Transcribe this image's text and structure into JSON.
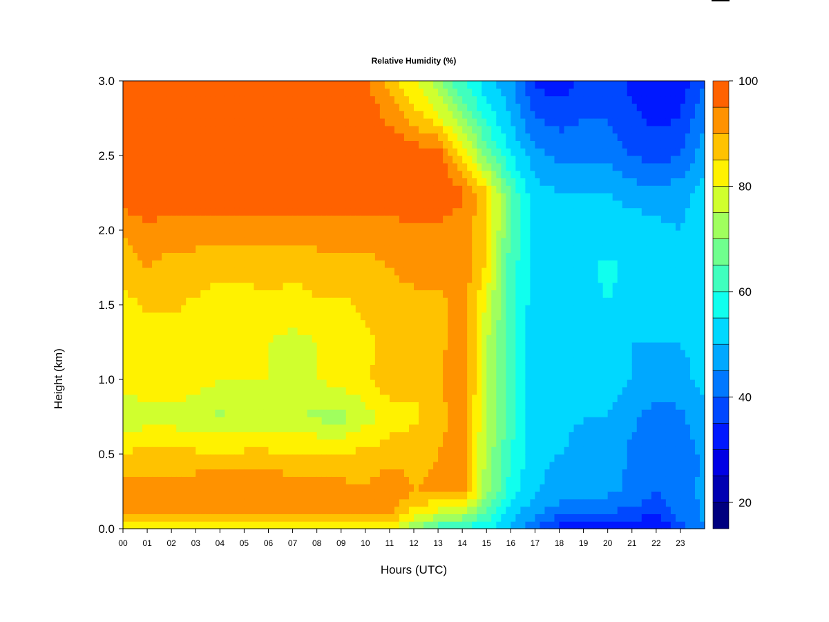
{
  "chart_data": {
    "type": "heatmap",
    "title": "Relative Humidity (%)",
    "xlabel": "Hours (UTC)",
    "ylabel": "Height (km)",
    "x_ticks": [
      "00",
      "01",
      "02",
      "03",
      "04",
      "05",
      "06",
      "07",
      "08",
      "09",
      "10",
      "11",
      "12",
      "13",
      "14",
      "15",
      "16",
      "17",
      "18",
      "19",
      "20",
      "21",
      "22",
      "23"
    ],
    "y_ticks": [
      "0.0",
      "0.5",
      "1.0",
      "1.5",
      "2.0",
      "2.5",
      "3.0"
    ],
    "xlim": [
      0,
      24
    ],
    "ylim": [
      0,
      3.0
    ],
    "z_range": [
      15,
      100
    ],
    "colorbar": {
      "ticks": [
        "20",
        "40",
        "60",
        "80",
        "100"
      ],
      "levels": [
        15,
        20,
        25,
        30,
        35,
        40,
        45,
        50,
        55,
        60,
        65,
        70,
        75,
        80,
        85,
        90,
        95,
        100
      ],
      "colors": [
        "#00007F",
        "#0000B2",
        "#0000E5",
        "#0018FF",
        "#0048FF",
        "#0078FF",
        "#00A8FF",
        "#00D8FF",
        "#10FFEE",
        "#40FFBE",
        "#70FF8E",
        "#A0FF5E",
        "#D0FF2E",
        "#FFF200",
        "#FFC200",
        "#FF9200",
        "#FF6200",
        "#FF3200",
        "#E50000",
        "#B20000",
        "#7F0000"
      ]
    },
    "hours": [
      0,
      1,
      2,
      3,
      4,
      5,
      6,
      7,
      8,
      9,
      10,
      11,
      12,
      13,
      14,
      15,
      16,
      17,
      18,
      19,
      20,
      21,
      22,
      23,
      24
    ],
    "heights": [
      0.0,
      0.1,
      0.25,
      0.5,
      0.75,
      1.0,
      1.25,
      1.5,
      1.75,
      2.0,
      2.25,
      2.5,
      2.75,
      3.0
    ],
    "values": [
      [
        82,
        82,
        82,
        82,
        82,
        82,
        82,
        82,
        82,
        82,
        82,
        82,
        70,
        60,
        58,
        55,
        50,
        40,
        32,
        30,
        30,
        30,
        28,
        38,
        45
      ],
      [
        90,
        90,
        90,
        92,
        90,
        91,
        92,
        90,
        90,
        90,
        90,
        92,
        82,
        78,
        75,
        63,
        52,
        46,
        42,
        40,
        40,
        38,
        36,
        42,
        46
      ],
      [
        92,
        93,
        93,
        94,
        94,
        94,
        95,
        93,
        92,
        92,
        91,
        94,
        90,
        91,
        93,
        72,
        58,
        50,
        48,
        46,
        46,
        44,
        40,
        43,
        46
      ],
      [
        86,
        86,
        86,
        86,
        86,
        86,
        86,
        86,
        86,
        86,
        86,
        88,
        88,
        90,
        92,
        74,
        60,
        52,
        50,
        48,
        48,
        44,
        40,
        42,
        46
      ],
      [
        75,
        78,
        78,
        76,
        74,
        76,
        76,
        75,
        74,
        73,
        78,
        82,
        84,
        88,
        93,
        75,
        62,
        52,
        52,
        50,
        50,
        46,
        43,
        44,
        48
      ],
      [
        82,
        84,
        84,
        82,
        80,
        80,
        80,
        80,
        80,
        82,
        84,
        88,
        86,
        89,
        95,
        76,
        62,
        52,
        52,
        52,
        52,
        50,
        48,
        48,
        52
      ],
      [
        80,
        82,
        82,
        82,
        80,
        80,
        80,
        78,
        80,
        82,
        84,
        86,
        86,
        88,
        94,
        76,
        62,
        52,
        52,
        50,
        52,
        50,
        50,
        50,
        52
      ],
      [
        83,
        86,
        86,
        84,
        83,
        83,
        84,
        83,
        84,
        84,
        86,
        88,
        88,
        88,
        93,
        79,
        62,
        52,
        54,
        52,
        55,
        52,
        50,
        50,
        53
      ],
      [
        88,
        90,
        88,
        88,
        86,
        86,
        87,
        86,
        88,
        88,
        88,
        90,
        92,
        92,
        94,
        84,
        62,
        54,
        55,
        54,
        56,
        54,
        52,
        52,
        54
      ],
      [
        90,
        94,
        92,
        92,
        92,
        92,
        92,
        92,
        92,
        92,
        92,
        93,
        94,
        94,
        93,
        86,
        64,
        54,
        54,
        52,
        53,
        53,
        52,
        50,
        55
      ],
      [
        99,
        99,
        99,
        99,
        99,
        99,
        99,
        99,
        99,
        99,
        99,
        99,
        98,
        98,
        96,
        86,
        64,
        52,
        50,
        50,
        50,
        48,
        46,
        48,
        52
      ],
      [
        99,
        99,
        99,
        99,
        99,
        99,
        99,
        99,
        99,
        99,
        99,
        99,
        99,
        98,
        85,
        68,
        55,
        47,
        44,
        44,
        44,
        40,
        38,
        40,
        48
      ],
      [
        99,
        99,
        99,
        99,
        99,
        99,
        99,
        99,
        99,
        99,
        99,
        94,
        88,
        82,
        70,
        58,
        50,
        40,
        38,
        40,
        40,
        36,
        34,
        35,
        45
      ],
      [
        99,
        99,
        99,
        99,
        99,
        99,
        99,
        100,
        100,
        99,
        96,
        88,
        80,
        72,
        60,
        52,
        46,
        34,
        32,
        36,
        38,
        34,
        30,
        32,
        40
      ]
    ]
  }
}
